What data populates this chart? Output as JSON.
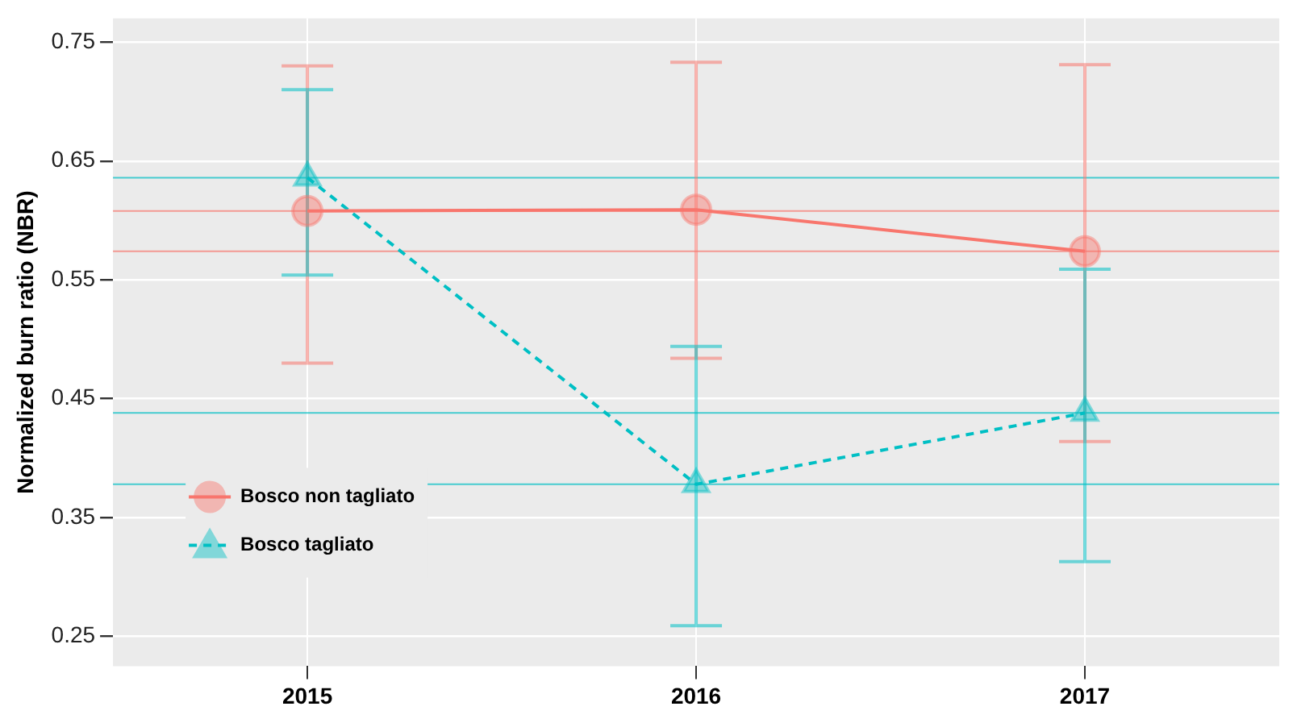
{
  "chart_data": {
    "type": "line",
    "ylabel": "Normalized burn ratio (NBR)",
    "categories": [
      "2015",
      "2016",
      "2017"
    ],
    "series": [
      {
        "name": "Bosco non tagliato",
        "color": "#f8766d",
        "values": [
          0.608,
          0.609,
          0.574
        ],
        "errors": [
          [
            0.48,
            0.73
          ],
          [
            0.484,
            0.733
          ],
          [
            0.414,
            0.731
          ]
        ],
        "marker": "circle",
        "line_style": "solid"
      },
      {
        "name": "Bosco tagliato",
        "color": "#00bfc4",
        "values": [
          0.636,
          0.378,
          0.438
        ],
        "errors": [
          [
            0.554,
            0.71
          ],
          [
            0.259,
            0.494
          ],
          [
            0.313,
            0.559
          ]
        ],
        "marker": "triangle",
        "line_style": "dashed"
      }
    ],
    "ref_lines": [
      {
        "axis": "y",
        "value": 0.608,
        "color": "#f8766d"
      },
      {
        "axis": "y",
        "value": 0.574,
        "color": "#f8766d"
      },
      {
        "axis": "y",
        "value": 0.636,
        "color": "#00bfc4"
      },
      {
        "axis": "y",
        "value": 0.378,
        "color": "#00bfc4"
      },
      {
        "axis": "y",
        "value": 0.438,
        "color": "#00bfc4"
      }
    ],
    "ylim": [
      0.225,
      0.77
    ],
    "yticks": [
      0.25,
      0.35,
      0.45,
      0.55,
      0.65,
      0.75
    ],
    "grid": true,
    "legend": "bottom left"
  }
}
